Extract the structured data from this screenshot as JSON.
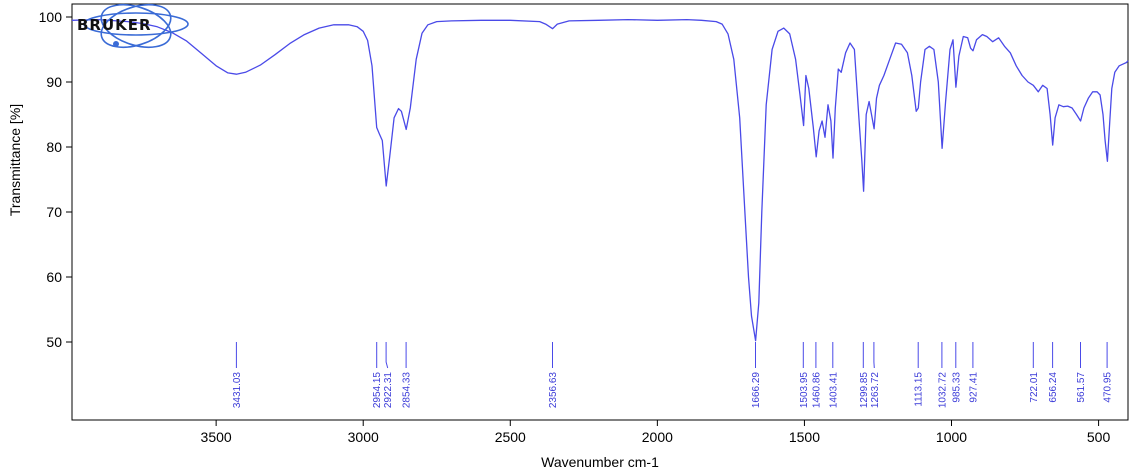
{
  "chart_data": {
    "type": "line",
    "xlabel": "Wavenumber cm-1",
    "ylabel": "Transmittance [%]",
    "xlim": [
      3990,
      400
    ],
    "ylim": [
      38,
      102
    ],
    "x_ticks": [
      3500,
      3000,
      2500,
      2000,
      1500,
      1000,
      500
    ],
    "y_ticks": [
      50,
      60,
      70,
      80,
      90,
      100
    ],
    "grid": false,
    "line_color": "#4a4ae8",
    "series": [
      {
        "x": [
          3990,
          3900,
          3800,
          3750,
          3700,
          3650,
          3600,
          3550,
          3500,
          3460,
          3431,
          3400,
          3350,
          3300,
          3250,
          3200,
          3150,
          3100,
          3050,
          3020,
          3000,
          2985,
          2970,
          2954,
          2945,
          2935,
          2922,
          2910,
          2895,
          2880,
          2870,
          2854,
          2840,
          2820,
          2800,
          2780,
          2750,
          2700,
          2600,
          2500,
          2400,
          2380,
          2356,
          2340,
          2300,
          2200,
          2100,
          2000,
          1900,
          1850,
          1800,
          1780,
          1760,
          1740,
          1720,
          1700,
          1690,
          1680,
          1666,
          1655,
          1645,
          1630,
          1610,
          1590,
          1570,
          1550,
          1530,
          1515,
          1503,
          1495,
          1485,
          1470,
          1460,
          1450,
          1440,
          1430,
          1420,
          1410,
          1403,
          1395,
          1385,
          1375,
          1360,
          1345,
          1330,
          1315,
          1305,
          1299,
          1290,
          1280,
          1270,
          1263,
          1255,
          1245,
          1230,
          1210,
          1190,
          1170,
          1150,
          1135,
          1120,
          1113,
          1105,
          1090,
          1075,
          1060,
          1045,
          1032,
          1020,
          1005,
          995,
          985,
          975,
          960,
          945,
          935,
          927,
          915,
          895,
          880,
          860,
          840,
          820,
          800,
          780,
          760,
          740,
          722,
          705,
          690,
          675,
          665,
          656,
          648,
          635,
          620,
          605,
          590,
          575,
          561,
          550,
          535,
          520,
          505,
          495,
          485,
          478,
          470,
          462,
          455,
          445,
          430,
          415,
          405,
          400
        ],
        "y": [
          99.5,
          99.6,
          99.3,
          99.0,
          98.5,
          97.6,
          96.3,
          94.4,
          92.5,
          91.4,
          91.2,
          91.5,
          92.6,
          94.2,
          95.9,
          97.3,
          98.3,
          98.8,
          98.8,
          98.5,
          97.8,
          96.4,
          92.5,
          83.0,
          82.0,
          81.0,
          74.0,
          78.5,
          84.5,
          85.9,
          85.5,
          82.7,
          86.0,
          93.5,
          97.5,
          98.8,
          99.3,
          99.4,
          99.5,
          99.5,
          99.3,
          98.9,
          98.2,
          98.9,
          99.4,
          99.5,
          99.6,
          99.5,
          99.6,
          99.5,
          99.3,
          98.9,
          97.4,
          93.5,
          84.5,
          68.0,
          60.0,
          54.0,
          50.2,
          56.0,
          70.0,
          86.5,
          95.0,
          97.8,
          98.3,
          97.4,
          93.5,
          88.0,
          83.3,
          91.0,
          89.0,
          83.0,
          78.5,
          82.5,
          84.0,
          81.5,
          86.5,
          84.0,
          78.3,
          86.0,
          92.0,
          91.5,
          94.5,
          96.0,
          95.0,
          84.5,
          78.0,
          73.2,
          85.0,
          87.0,
          84.5,
          82.8,
          87.5,
          89.5,
          91.0,
          93.5,
          96.0,
          95.8,
          94.5,
          91.0,
          85.5,
          86.0,
          90.0,
          95.0,
          95.5,
          95.0,
          90.0,
          79.8,
          87.0,
          95.0,
          96.5,
          89.2,
          94.0,
          97.0,
          96.8,
          95.2,
          94.8,
          96.5,
          97.3,
          97.0,
          96.2,
          96.8,
          95.5,
          94.5,
          92.5,
          91.0,
          90.0,
          89.5,
          88.5,
          89.5,
          89.0,
          85.0,
          80.3,
          84.5,
          86.5,
          86.2,
          86.3,
          86.0,
          85.0,
          84.0,
          86.0,
          87.5,
          88.5,
          88.5,
          88.0,
          85.0,
          81.0,
          77.8,
          84.0,
          89.0,
          91.5,
          92.5,
          92.8,
          93.0,
          93.3
        ]
      }
    ],
    "peaks": [
      {
        "x": 3431.03,
        "label": "3431.03"
      },
      {
        "x": 2954.15,
        "label": "2954.15"
      },
      {
        "x": 2922.31,
        "label": "2922.31"
      },
      {
        "x": 2854.33,
        "label": "2854.33"
      },
      {
        "x": 2356.63,
        "label": "2356.63"
      },
      {
        "x": 1666.29,
        "label": "1666.29"
      },
      {
        "x": 1503.95,
        "label": "1503.95"
      },
      {
        "x": 1460.86,
        "label": "1460.86"
      },
      {
        "x": 1403.41,
        "label": "1403.41"
      },
      {
        "x": 1299.85,
        "label": "1299.85"
      },
      {
        "x": 1263.72,
        "label": "1263.72"
      },
      {
        "x": 1113.15,
        "label": "1113.15"
      },
      {
        "x": 1032.72,
        "label": "1032.72"
      },
      {
        "x": 985.33,
        "label": "985.33"
      },
      {
        "x": 927.41,
        "label": "927.41"
      },
      {
        "x": 722.01,
        "label": "722.01"
      },
      {
        "x": 656.24,
        "label": "656.24"
      },
      {
        "x": 561.57,
        "label": "561.57"
      },
      {
        "x": 470.95,
        "label": "470.95"
      }
    ]
  },
  "logo": {
    "text": "BRUKER",
    "colors": {
      "ring": "#3a6bd6",
      "text": "#111111"
    }
  }
}
